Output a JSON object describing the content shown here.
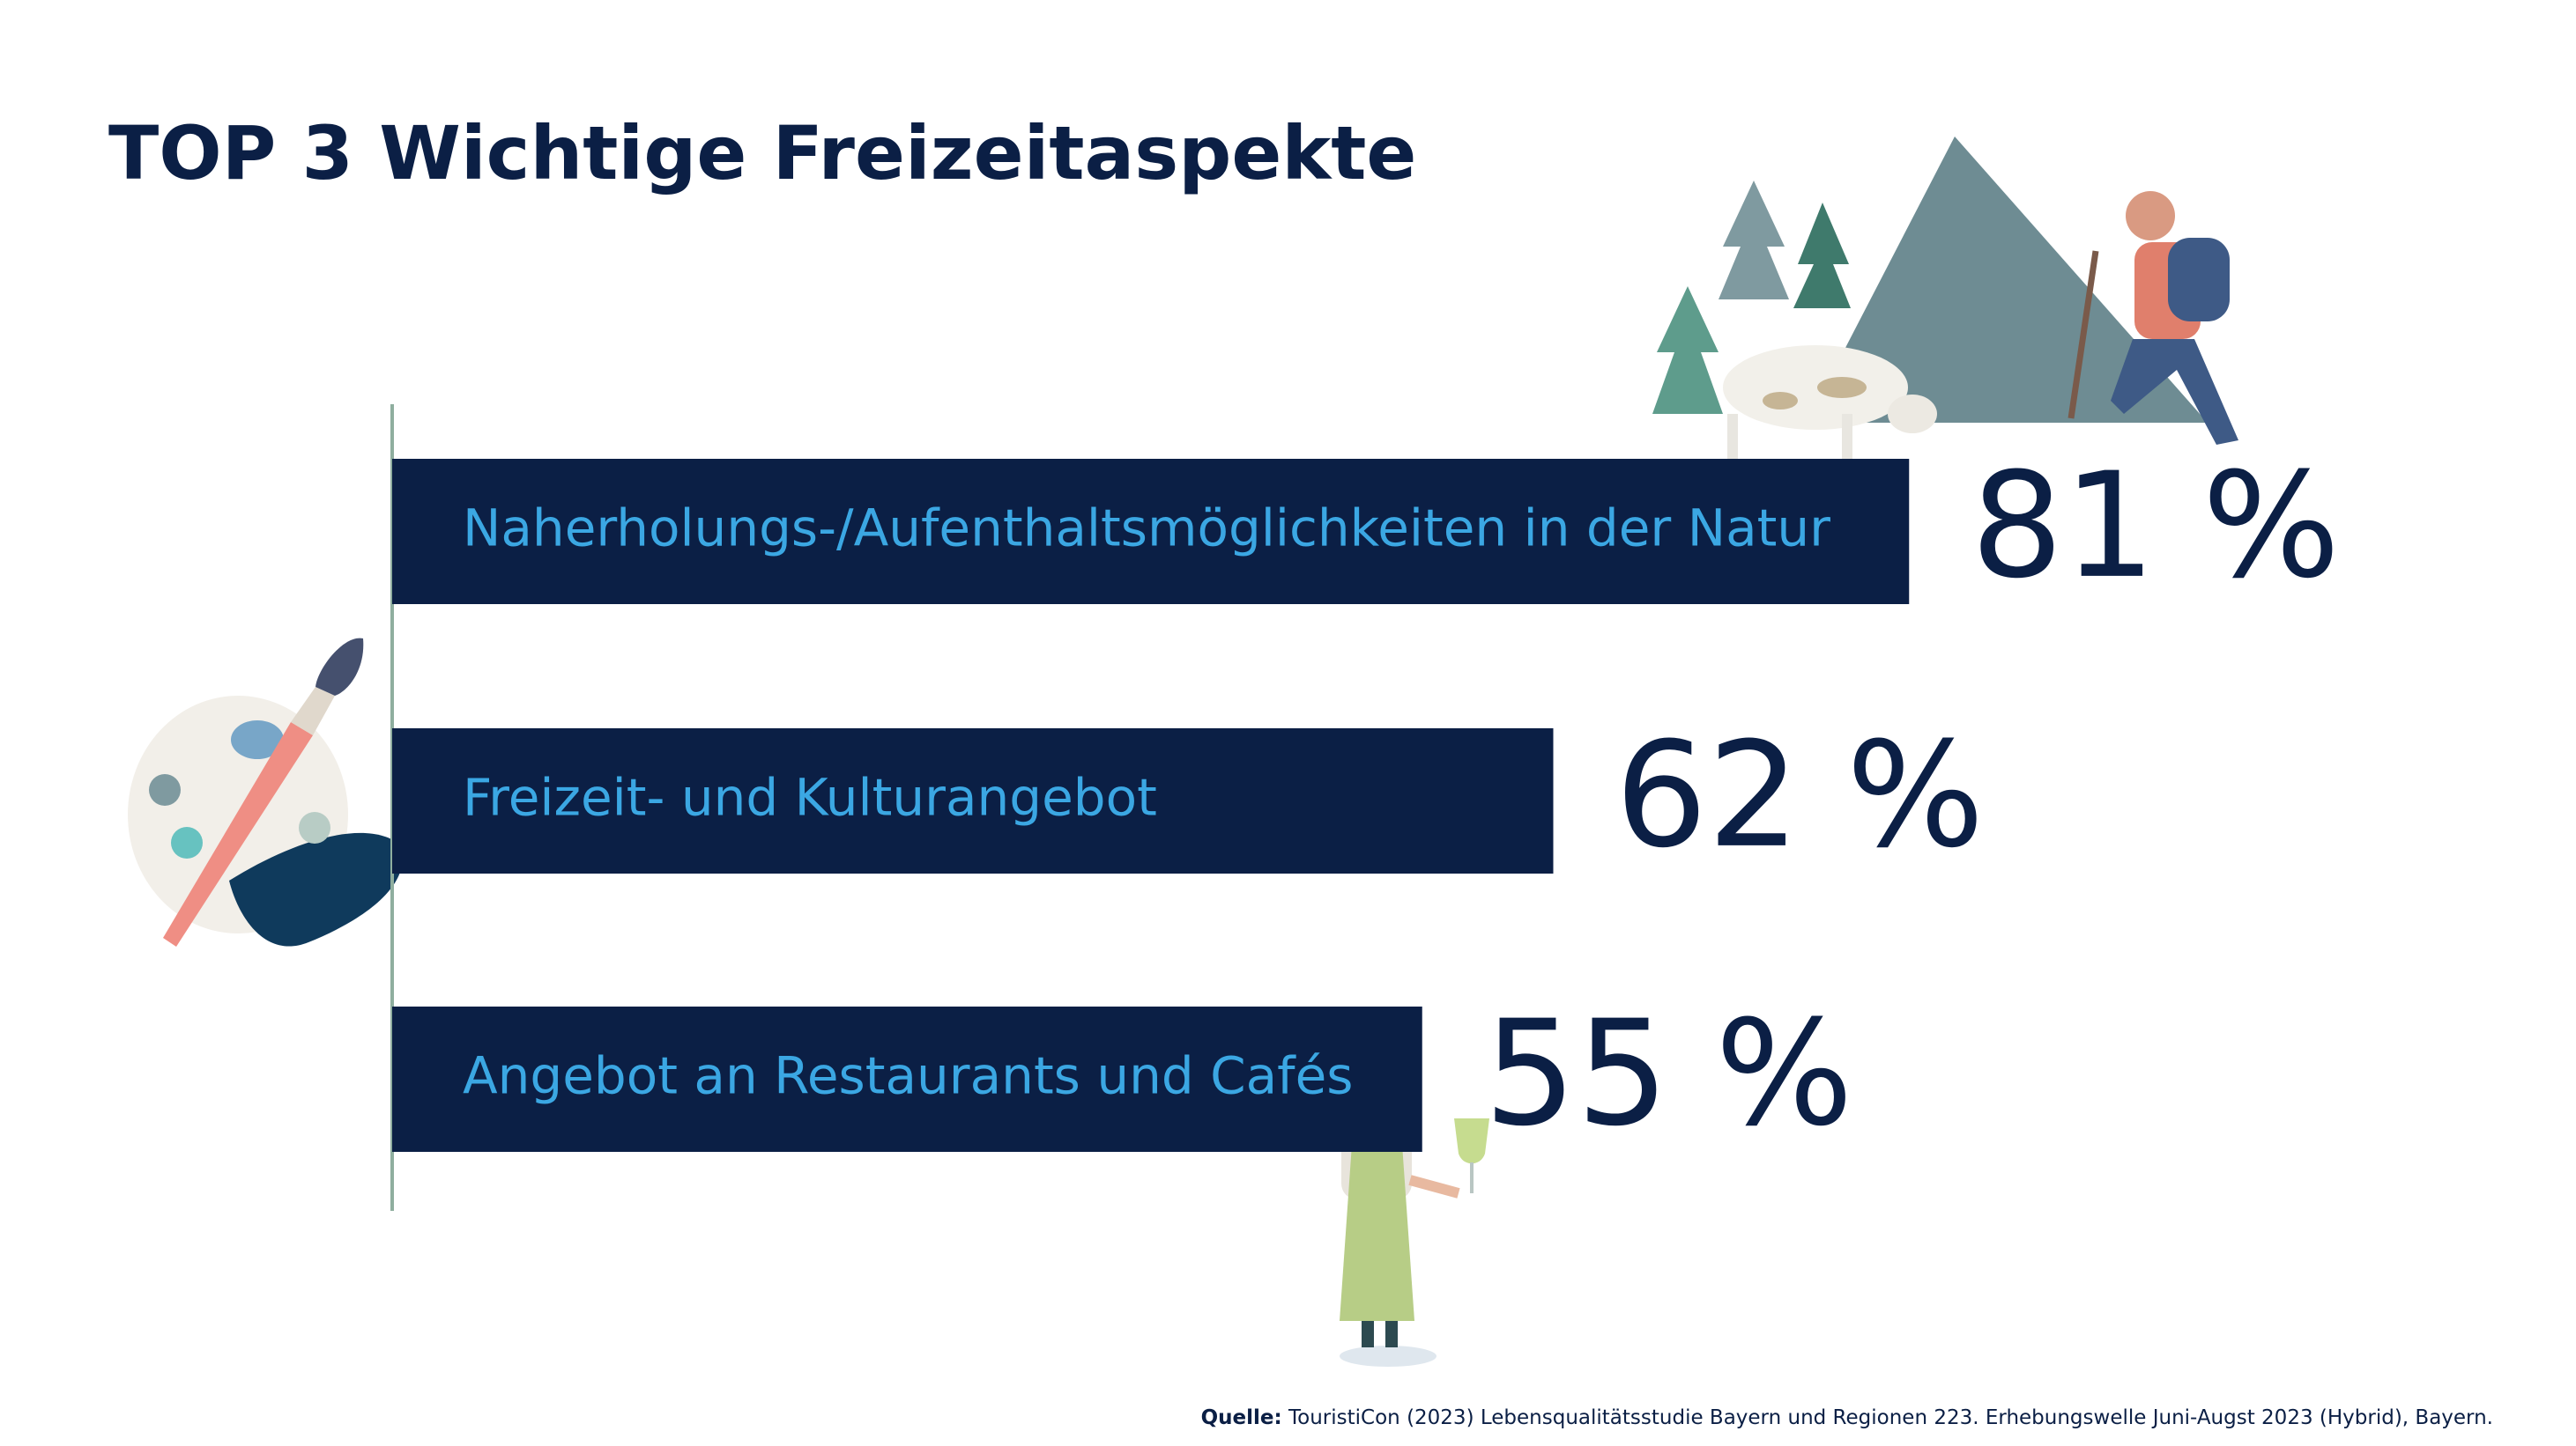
{
  "chart_data": {
    "type": "bar",
    "orientation": "horizontal",
    "title": "TOP 3 Wichtige Freizeitaspekte",
    "categories": [
      "Naherholungs-/Aufenthaltsmöglichkeiten in der Natur",
      "Freizeit- und Kulturangebot",
      "Angebot an Restaurants und Cafés"
    ],
    "values": [
      81,
      62,
      55
    ],
    "value_labels": [
      "81 %",
      "62 %",
      "55 %"
    ],
    "color": "#0b1f45",
    "source_label": "Quelle:",
    "source": "TouristiCon (2023) Lebensqualitätsstudie Bayern und Regionen 223. Erhebungswelle Juni-Augst 2023 (Hybrid), Bayern."
  }
}
